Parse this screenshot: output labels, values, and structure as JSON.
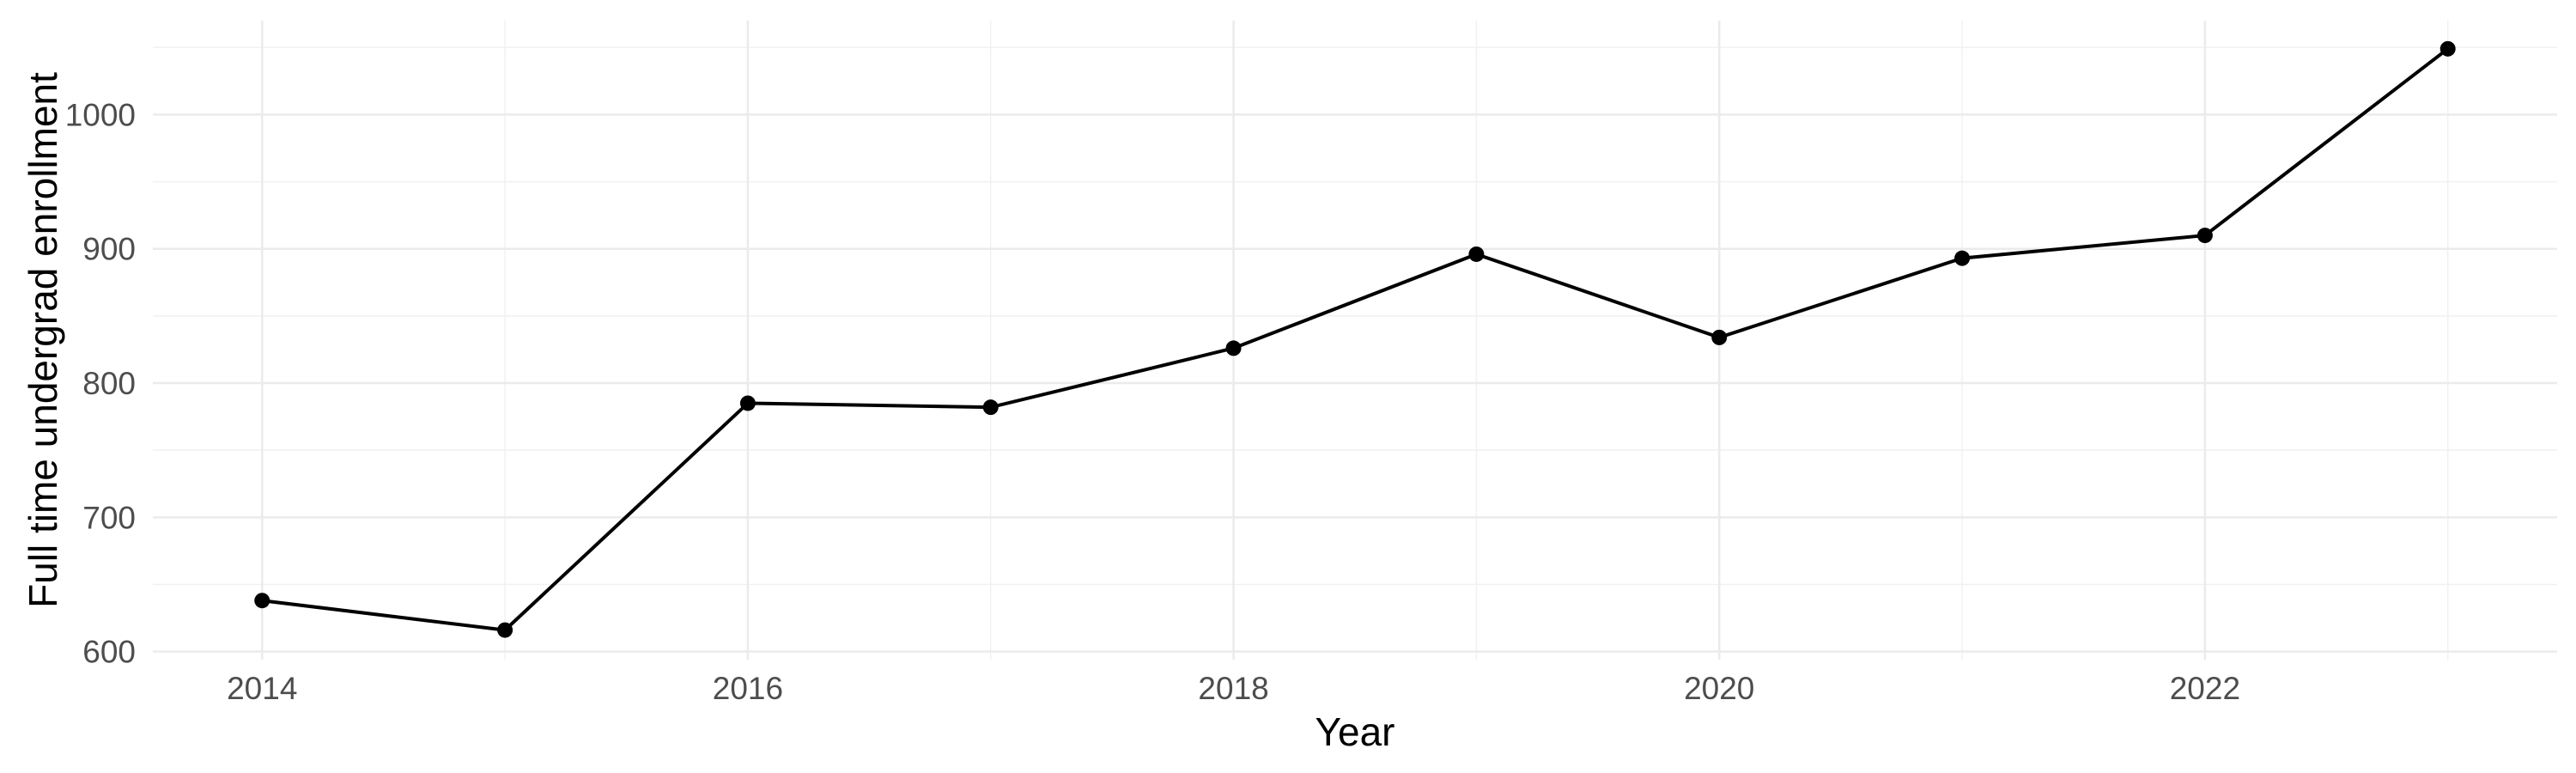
{
  "chart_data": {
    "type": "line",
    "xlabel": "Year",
    "ylabel": "Full time undergrad enrollment",
    "x": [
      2014,
      2015,
      2016,
      2017,
      2018,
      2019,
      2020,
      2021,
      2022,
      2023
    ],
    "series": [
      {
        "name": "Full time undergrad enrollment",
        "values": [
          638,
          616,
          785,
          782,
          826,
          896,
          834,
          893,
          910,
          1049
        ]
      }
    ],
    "xlim": [
      2013.55,
      2023.45
    ],
    "ylim": [
      594,
      1070
    ],
    "x_ticks": [
      2014,
      2016,
      2018,
      2020,
      2022
    ],
    "x_tick_labels": [
      "2014",
      "2016",
      "2018",
      "2020",
      "2022"
    ],
    "x_minor_gridlines": [
      2015,
      2017,
      2019,
      2021,
      2023
    ],
    "y_ticks": [
      600,
      700,
      800,
      900,
      1000
    ],
    "y_tick_labels": [
      "600",
      "700",
      "800",
      "900",
      "1000"
    ],
    "y_minor_gridlines": [
      650,
      750,
      850,
      950,
      1050
    ],
    "grid": "major+minor",
    "legend_position": "none",
    "colors": {
      "line": "#000000",
      "point": "#000000",
      "grid_major": "#EBEBEB",
      "grid_minor": "#F1F1F1",
      "tick_label": "#4D4D4D",
      "axis_title": "#000000",
      "background": "#FFFFFF"
    }
  }
}
